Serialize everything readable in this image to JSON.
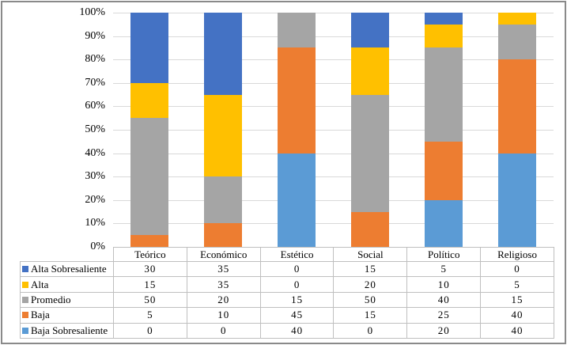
{
  "chart_data": {
    "type": "bar",
    "subtype": "stacked-100-percent-column",
    "title": "",
    "xlabel": "",
    "ylabel": "",
    "grid": true,
    "legend_position": "data-table-left",
    "categories": [
      "Teórico",
      "Económico",
      "Estético",
      "Social",
      "Político",
      "Religioso"
    ],
    "series": [
      {
        "name": "Alta Sobresaliente",
        "color": "#4472C4",
        "values": [
          30,
          35,
          0,
          15,
          5,
          0
        ]
      },
      {
        "name": "Alta",
        "color": "#FFC000",
        "values": [
          15,
          35,
          0,
          20,
          10,
          5
        ]
      },
      {
        "name": "Promedio",
        "color": "#A5A5A5",
        "values": [
          50,
          20,
          15,
          50,
          40,
          15
        ]
      },
      {
        "name": "Baja",
        "color": "#ED7D31",
        "values": [
          5,
          10,
          45,
          15,
          25,
          40
        ]
      },
      {
        "name": "Baja Sobresaliente",
        "color": "#5B9BD5",
        "values": [
          0,
          0,
          40,
          0,
          20,
          40
        ]
      }
    ],
    "y_axis": {
      "min": 0,
      "max": 100,
      "tick_step": 10,
      "ticks": [
        "100%",
        "90%",
        "80%",
        "70%",
        "60%",
        "50%",
        "40%",
        "30%",
        "20%",
        "10%",
        "0%"
      ]
    }
  },
  "colors": {
    "gridline": "#D9D9D9",
    "table_border": "#BFBFBF",
    "frame_border": "#8A8A8A",
    "background": "#FFFFFF"
  }
}
